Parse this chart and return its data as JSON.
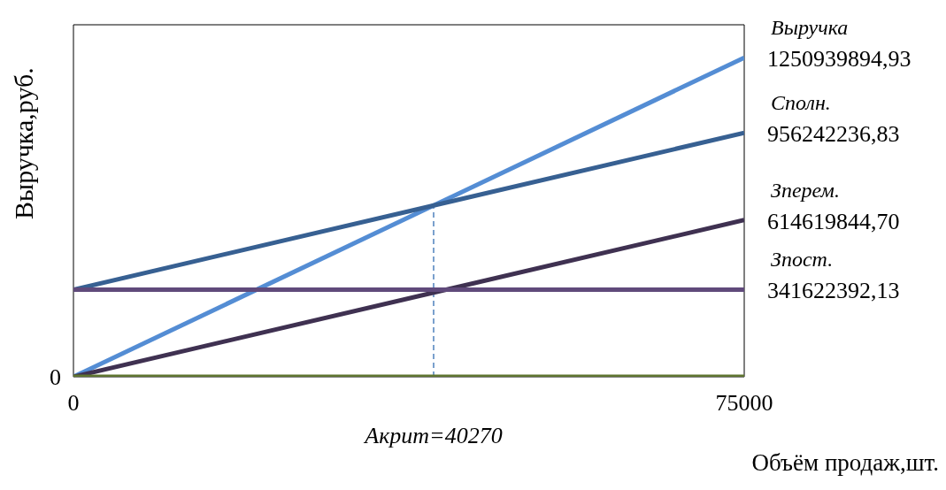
{
  "chart_data": {
    "type": "line",
    "xlabel": "Объём продаж,шт.",
    "ylabel": "Выручка,руб.",
    "x": [
      0,
      75000
    ],
    "series": [
      {
        "name": "Выручка",
        "color": "#548dd4",
        "values": [
          0,
          1250939894.93
        ],
        "value_labels": [
          null,
          "1250939894,93"
        ]
      },
      {
        "name": "Сполн.",
        "color": "#376092",
        "values": [
          341622392.13,
          956242236.83
        ],
        "value_labels": [
          null,
          "956242236,83"
        ]
      },
      {
        "name": "Зперем.",
        "color": "#3f3151",
        "values": [
          0,
          614619844.7
        ],
        "value_labels": [
          null,
          "614619844,70"
        ]
      },
      {
        "name": "Зпост.",
        "color": "#604a7b",
        "values": [
          341622392.13,
          341622392.13
        ],
        "value_labels": [
          null,
          "341622392,13"
        ]
      },
      {
        "color": "#5f7530",
        "values": [
          0,
          0
        ]
      }
    ],
    "xlim": [
      0,
      75000
    ],
    "xticks": [
      0,
      75000
    ],
    "ylim": [
      0,
      1380000000
    ],
    "annotations": [
      {
        "text": "0",
        "x": 0,
        "y": 0
      }
    ],
    "ref_lines": [
      {
        "axis": "x",
        "value": 40270,
        "label": "Акрит=40270",
        "color": "#4f81bd",
        "line_style": "dashed"
      }
    ],
    "grid": false,
    "legend": false,
    "marker": "none",
    "line_style": "solid"
  }
}
